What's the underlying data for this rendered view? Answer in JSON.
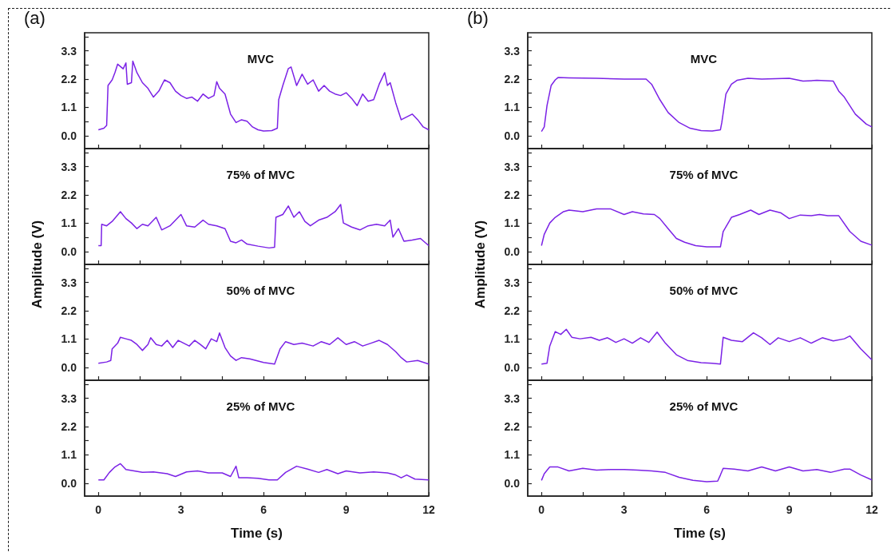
{
  "chart_data": [
    {
      "type": "line",
      "title": "MVC",
      "annotations": [
        "(a)"
      ],
      "tick_labels": "y",
      "xlim": [
        -0.5,
        12
      ],
      "ylim": [
        -0.5,
        4
      ],
      "xticks": [
        0,
        {
          "value": 1.5,
          "label": null
        },
        3,
        {
          "value": 4.5,
          "label": null
        },
        6,
        {
          "value": 7.5,
          "label": null
        },
        9,
        {
          "value": 10.5,
          "label": null
        },
        12
      ],
      "yticks": [
        {
          "value": 0,
          "label": "0.0"
        },
        {
          "value": 0.55,
          "label": null
        },
        1.1,
        {
          "value": 1.65,
          "label": null
        },
        2.2,
        {
          "value": 2.75,
          "label": null
        },
        3.3,
        {
          "value": 3.85,
          "label": null
        }
      ],
      "x": [
        0,
        0.2,
        0.3,
        0.35,
        0.5,
        0.6,
        0.7,
        0.9,
        1.0,
        1.05,
        1.2,
        1.25,
        1.4,
        1.6,
        1.8,
        2.0,
        2.2,
        2.4,
        2.6,
        2.8,
        3.0,
        3.2,
        3.4,
        3.6,
        3.8,
        4.0,
        4.2,
        4.3,
        4.4,
        4.6,
        4.8,
        5.0,
        5.2,
        5.4,
        5.6,
        5.8,
        6.0,
        6.3,
        6.5,
        6.55,
        6.7,
        6.9,
        7.0,
        7.2,
        7.4,
        7.6,
        7.8,
        8.0,
        8.2,
        8.4,
        8.6,
        8.8,
        9.0,
        9.2,
        9.4,
        9.6,
        9.8,
        10.0,
        10.2,
        10.4,
        10.5,
        10.6,
        10.8,
        11.0,
        11.2,
        11.4,
        11.6,
        11.8,
        12
      ],
      "series": [
        {
          "color": "#7b22e6",
          "values": [
            0.23,
            0.29,
            0.4,
            1.95,
            2.17,
            2.45,
            2.78,
            2.6,
            2.83,
            2.0,
            2.06,
            2.9,
            2.45,
            2.06,
            1.84,
            1.5,
            1.74,
            2.17,
            2.06,
            1.73,
            1.56,
            1.45,
            1.5,
            1.34,
            1.62,
            1.45,
            1.56,
            2.1,
            1.84,
            1.62,
            0.84,
            0.51,
            0.62,
            0.56,
            0.34,
            0.23,
            0.18,
            0.2,
            0.29,
            1.4,
            1.95,
            2.61,
            2.67,
            1.95,
            2.39,
            2.0,
            2.17,
            1.73,
            1.95,
            1.73,
            1.62,
            1.56,
            1.67,
            1.45,
            1.17,
            1.62,
            1.34,
            1.4,
            2.0,
            2.45,
            1.95,
            2.06,
            1.28,
            0.62,
            0.73,
            0.84,
            0.62,
            0.34,
            0.23
          ]
        }
      ]
    },
    {
      "type": "line",
      "title": "75% of MVC",
      "ylabel": "Amplitude (V)",
      "tick_labels": "y",
      "xlim": [
        -0.5,
        12
      ],
      "ylim": [
        -0.5,
        4
      ],
      "xticks": [
        0,
        {
          "value": 1.5,
          "label": null
        },
        3,
        {
          "value": 4.5,
          "label": null
        },
        6,
        {
          "value": 7.5,
          "label": null
        },
        9,
        {
          "value": 10.5,
          "label": null
        },
        12
      ],
      "yticks": [
        {
          "value": 0,
          "label": "0.0"
        },
        {
          "value": 0.55,
          "label": null
        },
        1.1,
        {
          "value": 1.65,
          "label": null
        },
        2.2,
        {
          "value": 2.75,
          "label": null
        },
        3.3,
        {
          "value": 3.85,
          "label": null
        }
      ],
      "x": [
        0,
        0.1,
        0.12,
        0.3,
        0.5,
        0.8,
        1.0,
        1.2,
        1.4,
        1.6,
        1.8,
        2.1,
        2.3,
        2.6,
        3.0,
        3.2,
        3.5,
        3.8,
        4.0,
        4.3,
        4.6,
        4.8,
        5.0,
        5.2,
        5.4,
        5.8,
        6.2,
        6.4,
        6.45,
        6.7,
        6.9,
        7.1,
        7.3,
        7.5,
        7.7,
        8.0,
        8.3,
        8.6,
        8.8,
        8.9,
        9.2,
        9.5,
        9.8,
        10.1,
        10.4,
        10.6,
        10.7,
        10.9,
        11.1,
        11.4,
        11.7,
        12
      ],
      "series": [
        {
          "color": "#7b22e6",
          "values": [
            0.23,
            0.23,
            1.06,
            1.0,
            1.17,
            1.55,
            1.28,
            1.11,
            0.89,
            1.06,
            1.0,
            1.33,
            0.84,
            1.0,
            1.44,
            1.0,
            0.95,
            1.22,
            1.06,
            1.0,
            0.89,
            0.4,
            0.34,
            0.45,
            0.29,
            0.21,
            0.14,
            0.17,
            1.33,
            1.44,
            1.77,
            1.33,
            1.55,
            1.17,
            1.0,
            1.22,
            1.33,
            1.55,
            1.83,
            1.11,
            0.95,
            0.84,
            1.0,
            1.06,
            1.0,
            1.22,
            0.56,
            0.89,
            0.4,
            0.45,
            0.51,
            0.23
          ]
        }
      ]
    },
    {
      "type": "line",
      "title": "50% of MVC",
      "tick_labels": "y",
      "xlim": [
        -0.5,
        12
      ],
      "ylim": [
        -0.5,
        4
      ],
      "xticks": [
        0,
        {
          "value": 1.5,
          "label": null
        },
        3,
        {
          "value": 4.5,
          "label": null
        },
        6,
        {
          "value": 7.5,
          "label": null
        },
        9,
        {
          "value": 10.5,
          "label": null
        },
        12
      ],
      "yticks": [
        {
          "value": 0,
          "label": "0.0"
        },
        {
          "value": 0.55,
          "label": null
        },
        1.1,
        {
          "value": 1.65,
          "label": null
        },
        2.2,
        {
          "value": 2.75,
          "label": null
        },
        3.3,
        {
          "value": 3.85,
          "label": null
        }
      ],
      "x": [
        0,
        0.3,
        0.45,
        0.5,
        0.7,
        0.8,
        1.0,
        1.2,
        1.4,
        1.6,
        1.8,
        1.9,
        2.1,
        2.3,
        2.5,
        2.7,
        2.9,
        3.1,
        3.3,
        3.5,
        3.7,
        3.9,
        4.1,
        4.3,
        4.4,
        4.6,
        4.8,
        5.0,
        5.2,
        5.5,
        6.0,
        6.4,
        6.6,
        6.8,
        7.1,
        7.4,
        7.8,
        8.1,
        8.4,
        8.7,
        9.0,
        9.3,
        9.6,
        9.9,
        10.2,
        10.5,
        10.8,
        11.0,
        11.2,
        11.6,
        12
      ],
      "series": [
        {
          "color": "#7b22e6",
          "values": [
            0.16,
            0.21,
            0.27,
            0.72,
            0.94,
            1.17,
            1.11,
            1.05,
            0.89,
            0.66,
            0.89,
            1.15,
            0.89,
            0.83,
            1.05,
            0.77,
            1.05,
            0.94,
            0.83,
            1.05,
            0.89,
            0.72,
            1.11,
            1.0,
            1.34,
            0.77,
            0.44,
            0.27,
            0.38,
            0.33,
            0.19,
            0.13,
            0.72,
            1.0,
            0.89,
            0.94,
            0.83,
            1.0,
            0.89,
            1.15,
            0.89,
            1.0,
            0.83,
            0.94,
            1.05,
            0.89,
            0.61,
            0.38,
            0.21,
            0.27,
            0.13
          ]
        }
      ]
    },
    {
      "type": "line",
      "title": "25% of MVC",
      "xlabel": "Time (s)",
      "xlim": [
        -0.5,
        12
      ],
      "ylim": [
        -0.5,
        4
      ],
      "xticks": [
        0,
        {
          "value": 1.5,
          "label": null
        },
        3,
        {
          "value": 4.5,
          "label": null
        },
        6,
        {
          "value": 7.5,
          "label": null
        },
        9,
        {
          "value": 10.5,
          "label": null
        },
        12
      ],
      "yticks": [
        {
          "value": 0,
          "label": "0.0"
        },
        {
          "value": 0.55,
          "label": null
        },
        1.1,
        {
          "value": 1.65,
          "label": null
        },
        2.2,
        {
          "value": 2.75,
          "label": null
        },
        3.3,
        {
          "value": 3.85,
          "label": null
        }
      ],
      "x": [
        0,
        0.2,
        0.4,
        0.6,
        0.8,
        1.0,
        1.3,
        1.6,
        2.0,
        2.5,
        2.8,
        3.2,
        3.6,
        4.0,
        4.5,
        4.8,
        5.0,
        5.1,
        5.4,
        5.8,
        6.2,
        6.5,
        6.8,
        7.2,
        7.6,
        8.0,
        8.3,
        8.7,
        9.0,
        9.5,
        10.0,
        10.5,
        10.8,
        11.0,
        11.2,
        11.5,
        12
      ],
      "series": [
        {
          "color": "#7b22e6",
          "values": [
            0.13,
            0.13,
            0.42,
            0.63,
            0.76,
            0.53,
            0.48,
            0.42,
            0.44,
            0.37,
            0.26,
            0.44,
            0.48,
            0.4,
            0.4,
            0.26,
            0.66,
            0.21,
            0.21,
            0.19,
            0.13,
            0.13,
            0.42,
            0.66,
            0.55,
            0.42,
            0.53,
            0.37,
            0.48,
            0.4,
            0.44,
            0.4,
            0.32,
            0.21,
            0.32,
            0.16,
            0.13
          ]
        }
      ]
    },
    {
      "type": "line",
      "title": "MVC",
      "annotations": [
        "(b)"
      ],
      "tick_labels": "y",
      "xlim": [
        -0.5,
        12
      ],
      "ylim": [
        -0.5,
        4
      ],
      "xticks": [
        0,
        {
          "value": 1.5,
          "label": null
        },
        3,
        {
          "value": 4.5,
          "label": null
        },
        6,
        {
          "value": 7.5,
          "label": null
        },
        9,
        {
          "value": 10.5,
          "label": null
        },
        12
      ],
      "yticks": [
        {
          "value": 0,
          "label": "0.0"
        },
        {
          "value": 0.55,
          "label": null
        },
        1.1,
        {
          "value": 1.65,
          "label": null
        },
        2.2,
        {
          "value": 2.75,
          "label": null
        },
        3.3,
        {
          "value": 3.85,
          "label": null
        }
      ],
      "x": [
        0,
        0.1,
        0.2,
        0.35,
        0.5,
        0.6,
        1.0,
        2.0,
        3.0,
        3.8,
        4.0,
        4.3,
        4.6,
        5.0,
        5.4,
        5.8,
        6.2,
        6.5,
        6.55,
        6.7,
        6.9,
        7.1,
        7.5,
        8.0,
        9.0,
        9.5,
        10.0,
        10.6,
        10.8,
        11.0,
        11.4,
        11.8,
        12
      ],
      "series": [
        {
          "color": "#7b22e6",
          "values": [
            0.16,
            0.34,
            1.17,
            1.95,
            2.17,
            2.26,
            2.25,
            2.23,
            2.2,
            2.2,
            2.0,
            1.4,
            0.9,
            0.51,
            0.29,
            0.2,
            0.18,
            0.23,
            0.51,
            1.62,
            2.0,
            2.15,
            2.23,
            2.2,
            2.23,
            2.12,
            2.15,
            2.12,
            1.73,
            1.5,
            0.84,
            0.45,
            0.34
          ]
        }
      ]
    },
    {
      "type": "line",
      "title": "75% of MVC",
      "ylabel": "Amplitude (V)",
      "tick_labels": "y",
      "xlim": [
        -0.5,
        12
      ],
      "ylim": [
        -0.5,
        4
      ],
      "xticks": [
        0,
        {
          "value": 1.5,
          "label": null
        },
        3,
        {
          "value": 4.5,
          "label": null
        },
        6,
        {
          "value": 7.5,
          "label": null
        },
        9,
        {
          "value": 10.5,
          "label": null
        },
        12
      ],
      "yticks": [
        {
          "value": 0,
          "label": "0.0"
        },
        {
          "value": 0.55,
          "label": null
        },
        1.1,
        {
          "value": 1.65,
          "label": null
        },
        2.2,
        {
          "value": 2.75,
          "label": null
        },
        3.3,
        {
          "value": 3.85,
          "label": null
        }
      ],
      "x": [
        0,
        0.1,
        0.3,
        0.5,
        0.8,
        1.0,
        1.5,
        2.0,
        2.5,
        3.0,
        3.3,
        3.7,
        4.1,
        4.3,
        4.6,
        4.9,
        5.2,
        5.6,
        6.0,
        6.5,
        6.6,
        6.9,
        7.2,
        7.6,
        7.9,
        8.3,
        8.7,
        9.0,
        9.4,
        9.8,
        10.1,
        10.4,
        10.8,
        11.2,
        11.6,
        12
      ],
      "series": [
        {
          "color": "#7b22e6",
          "values": [
            0.23,
            0.67,
            1.11,
            1.33,
            1.55,
            1.61,
            1.55,
            1.66,
            1.66,
            1.44,
            1.55,
            1.46,
            1.44,
            1.28,
            0.89,
            0.51,
            0.36,
            0.23,
            0.18,
            0.18,
            0.78,
            1.33,
            1.44,
            1.61,
            1.44,
            1.61,
            1.5,
            1.28,
            1.42,
            1.39,
            1.44,
            1.39,
            1.39,
            0.78,
            0.4,
            0.25
          ]
        }
      ]
    },
    {
      "type": "line",
      "title": "50% of MVC",
      "tick_labels": "y",
      "xlim": [
        -0.5,
        12
      ],
      "ylim": [
        -0.5,
        4
      ],
      "xticks": [
        0,
        {
          "value": 1.5,
          "label": null
        },
        3,
        {
          "value": 4.5,
          "label": null
        },
        6,
        {
          "value": 7.5,
          "label": null
        },
        9,
        {
          "value": 10.5,
          "label": null
        },
        12
      ],
      "yticks": [
        {
          "value": 0,
          "label": "0.0"
        },
        {
          "value": 0.55,
          "label": null
        },
        1.1,
        {
          "value": 1.65,
          "label": null
        },
        2.2,
        {
          "value": 2.75,
          "label": null
        },
        3.3,
        {
          "value": 3.85,
          "label": null
        }
      ],
      "x": [
        0,
        0.2,
        0.3,
        0.5,
        0.7,
        0.9,
        1.1,
        1.4,
        1.8,
        2.1,
        2.4,
        2.7,
        3.0,
        3.3,
        3.6,
        3.9,
        4.2,
        4.5,
        4.9,
        5.3,
        5.8,
        6.2,
        6.5,
        6.6,
        6.9,
        7.3,
        7.7,
        8.0,
        8.3,
        8.6,
        9.0,
        9.4,
        9.8,
        10.2,
        10.6,
        11.0,
        11.2,
        11.6,
        12
      ],
      "series": [
        {
          "color": "#7b22e6",
          "values": [
            0.13,
            0.16,
            0.83,
            1.39,
            1.28,
            1.48,
            1.17,
            1.11,
            1.17,
            1.05,
            1.15,
            0.97,
            1.11,
            0.94,
            1.15,
            0.97,
            1.37,
            0.94,
            0.49,
            0.27,
            0.18,
            0.16,
            0.13,
            1.17,
            1.05,
            1.0,
            1.34,
            1.15,
            0.89,
            1.15,
            1.0,
            1.15,
            0.94,
            1.15,
            1.03,
            1.11,
            1.22,
            0.72,
            0.29
          ]
        }
      ]
    },
    {
      "type": "line",
      "title": "25% of MVC",
      "xlabel": "Time (s)",
      "xlim": [
        -0.5,
        12
      ],
      "ylim": [
        -0.5,
        4
      ],
      "xticks": [
        0,
        {
          "value": 1.5,
          "label": null
        },
        3,
        {
          "value": 4.5,
          "label": null
        },
        6,
        {
          "value": 7.5,
          "label": null
        },
        9,
        {
          "value": 10.5,
          "label": null
        },
        12
      ],
      "yticks": [
        {
          "value": 0,
          "label": "0.0"
        },
        {
          "value": 0.55,
          "label": null
        },
        1.1,
        {
          "value": 1.65,
          "label": null
        },
        2.2,
        {
          "value": 2.75,
          "label": null
        },
        3.3,
        {
          "value": 3.85,
          "label": null
        }
      ],
      "x": [
        0,
        0.1,
        0.3,
        0.6,
        1.0,
        1.5,
        2.0,
        2.5,
        3.0,
        3.5,
        4.0,
        4.5,
        5.0,
        5.5,
        6.0,
        6.4,
        6.5,
        6.6,
        7.0,
        7.5,
        8.0,
        8.5,
        9.0,
        9.5,
        10.0,
        10.5,
        11.0,
        11.2,
        11.6,
        12
      ],
      "series": [
        {
          "color": "#7b22e6",
          "values": [
            0.11,
            0.37,
            0.63,
            0.63,
            0.48,
            0.58,
            0.51,
            0.53,
            0.53,
            0.51,
            0.48,
            0.42,
            0.23,
            0.11,
            0.06,
            0.08,
            0.32,
            0.58,
            0.55,
            0.48,
            0.63,
            0.48,
            0.63,
            0.48,
            0.53,
            0.42,
            0.55,
            0.55,
            0.32,
            0.13
          ]
        }
      ]
    }
  ]
}
